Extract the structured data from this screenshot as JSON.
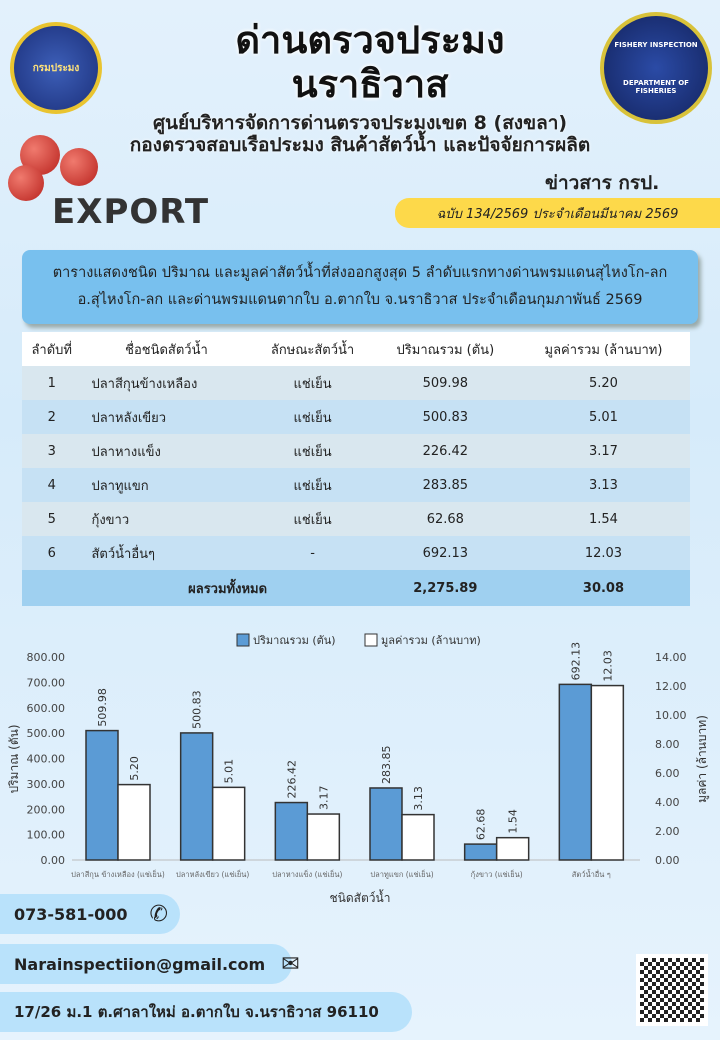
{
  "header": {
    "title_line1": "ด่านตรวจประมง",
    "title_line2": "นราธิวาส",
    "subtitle1": "ศูนย์บริหารจัดการด่านตรวจประมงเขต 8 (สงขลา)",
    "subtitle2": "กองตรวจสอบเรือประมง สินค้าสัตว์น้ำ และปัจจัยการผลิต",
    "news": "ข่าวสาร กรป.",
    "issue": "ฉบับ 134/2569 ประจำเดือนมีนาคม  2569",
    "export": "EXPORT",
    "logo_left": "กรมประมง",
    "logo_right_top": "FISHERY INSPECTION",
    "logo_right_bottom": "DEPARTMENT OF FISHERIES"
  },
  "table_title": {
    "line1": "ตารางแสดงชนิด ปริมาณ และมูลค่าสัตว์น้ำที่ส่งออกสูงสุด 5 ลำดับแรกทางด่านพรมแดนสุไหงโก-ลก",
    "line2": "อ.สุไหงโก-ลก และด่านพรมแดนตากใบ  อ.ตากใบ  จ.นราธิวาส  ประจำเดือนกุมภาพันธ์  2569"
  },
  "table": {
    "headers": [
      "ลำดับที่",
      "ชื่อชนิดสัตว์น้ำ",
      "ลักษณะสัตว์น้ำ",
      "ปริมาณรวม (ตัน)",
      "มูลค่ารวม (ล้านบาท)"
    ],
    "rows": [
      [
        "1",
        "ปลาสีกุนข้างเหลือง",
        "แช่เย็น",
        "509.98",
        "5.20"
      ],
      [
        "2",
        "ปลาหลังเขียว",
        "แช่เย็น",
        "500.83",
        "5.01"
      ],
      [
        "3",
        "ปลาหางแข็ง",
        "แช่เย็น",
        "226.42",
        "3.17"
      ],
      [
        "4",
        "ปลาทูแขก",
        "แช่เย็น",
        "283.85",
        "3.13"
      ],
      [
        "5",
        "กุ้งขาว",
        "แช่เย็น",
        "62.68",
        "1.54"
      ],
      [
        "6",
        "สัตว์น้ำอื่นๆ",
        "-",
        "692.13",
        "12.03"
      ]
    ],
    "total_label": "ผลรวมทั้งหมด",
    "total_qty": "2,275.89",
    "total_value": "30.08"
  },
  "chart_data": {
    "type": "bar",
    "categories": [
      "ปลาสีกุน ข้างเหลือง (แช่เย็น)",
      "ปลาหลังเขียว (แช่เย็น)",
      "ปลาหางแข็ง (แช่เย็น)",
      "ปลาทูแขก (แช่เย็น)",
      "กุ้งขาว (แช่เย็น)",
      "สัตว์น้ำอื่น ๆ"
    ],
    "series": [
      {
        "name": "ปริมาณรวม (ตัน)",
        "axis": "left",
        "color": "#5b9bd5",
        "values": [
          509.98,
          500.83,
          226.42,
          283.85,
          62.68,
          692.13
        ]
      },
      {
        "name": "มูลค่ารวม (ล้านบาท)",
        "axis": "right",
        "color": "#ffffff",
        "values": [
          5.2,
          5.01,
          3.17,
          3.13,
          1.54,
          12.03
        ]
      }
    ],
    "xlabel": "ชนิดสัตว์น้ำ",
    "ylabel": "ปริมาณ (ตัน)",
    "y2label": "มูลค่า (ล้านบาท)",
    "ylim": [
      0,
      800
    ],
    "y2lim": [
      0,
      14
    ],
    "yticks": [
      "0.00",
      "100.00",
      "200.00",
      "300.00",
      "400.00",
      "500.00",
      "600.00",
      "700.00",
      "800.00"
    ],
    "y2ticks": [
      "0.00",
      "2.00",
      "4.00",
      "6.00",
      "8.00",
      "10.00",
      "12.00",
      "14.00"
    ],
    "legend": "top"
  },
  "contact": {
    "phone": "073-581-000",
    "email": "Narainspectiion@gmail.com",
    "address": "17/26 ม.1 ต.ศาลาใหม่ อ.ตากใบ จ.นราธิวาส 96110"
  }
}
